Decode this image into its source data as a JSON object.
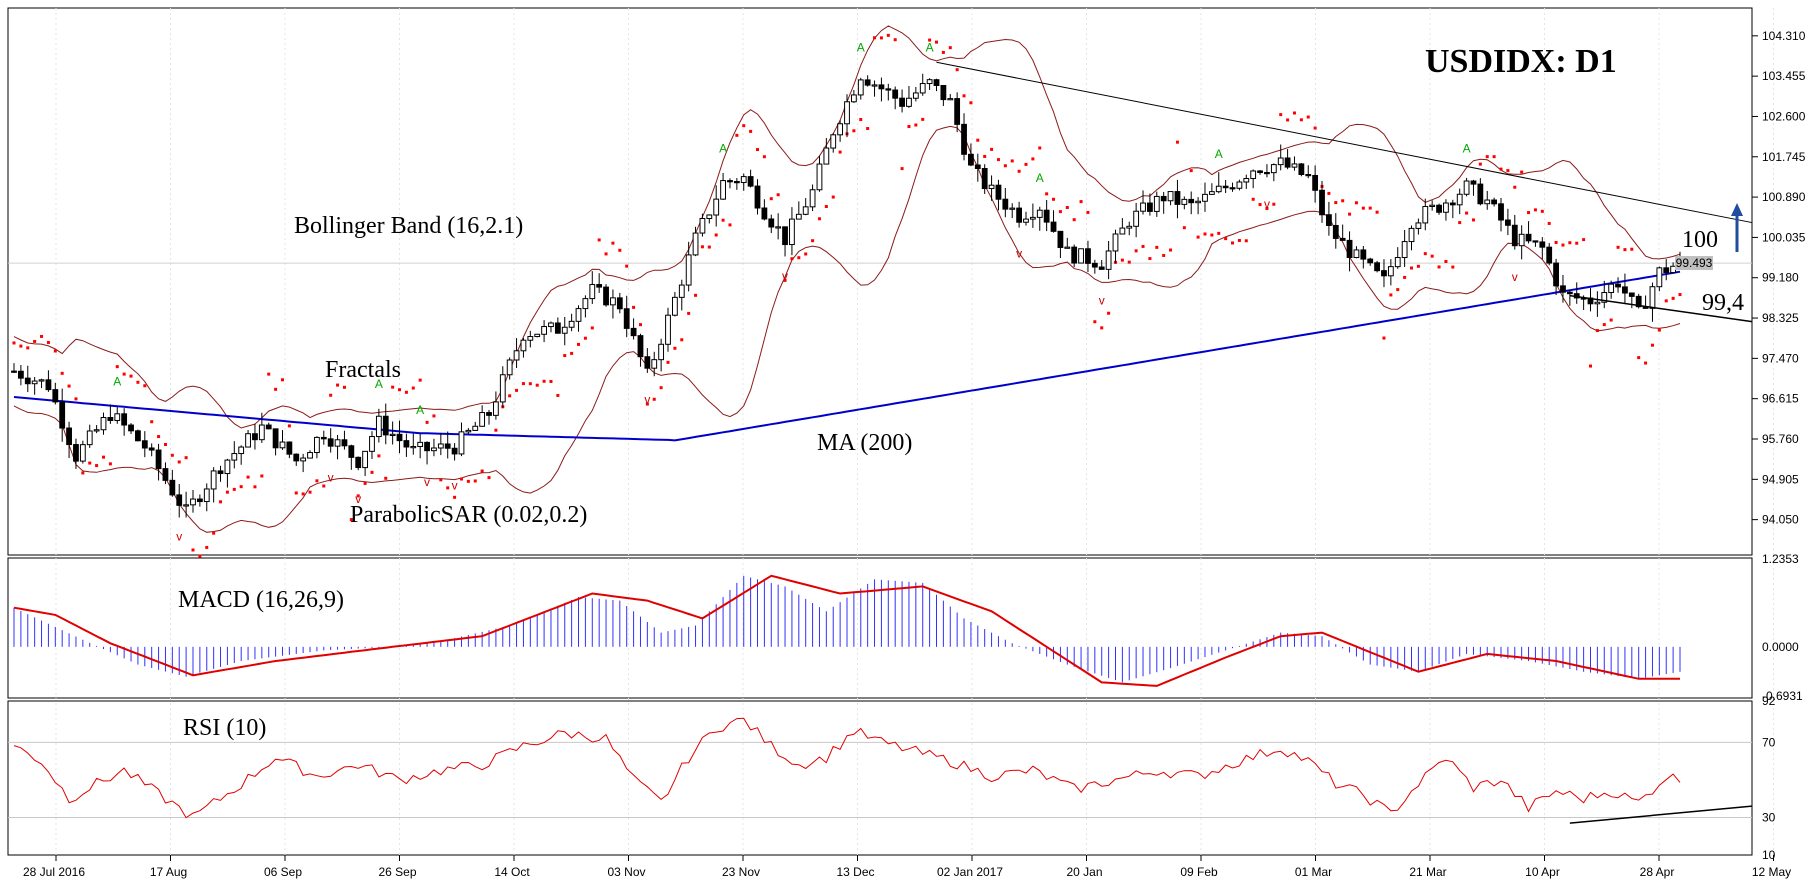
{
  "chart_data": {
    "type": "candlestick",
    "title": "USDIDX: D1",
    "price_axis": {
      "ticks": [
        "104.310",
        "103.455",
        "102.600",
        "101.745",
        "100.890",
        "100.035",
        "99.180",
        "98.325",
        "97.470",
        "96.615",
        "95.760",
        "94.905",
        "94.050"
      ],
      "ylim": [
        93.3,
        104.9
      ],
      "current_price": "99.493"
    },
    "x_axis_ticks": [
      "28 Jul 2016",
      "17 Aug",
      "06 Sep",
      "26 Sep",
      "14 Oct",
      "03 Nov",
      "23 Nov",
      "13 Dec",
      "02 Jan 2017",
      "20 Jan",
      "09 Feb",
      "01 Mar",
      "21 Mar",
      "10 Apr",
      "28 Apr",
      "12 May"
    ],
    "annotations": {
      "bollinger": "Bollinger Band (16,2.1)",
      "fractals": "Fractals",
      "ma": "MA (200)",
      "sar": "ParabolicSAR (0.02,0.2)",
      "level_up": "100",
      "level_down": "99,4"
    },
    "price_path": [
      {
        "d": 0,
        "v": 97.2
      },
      {
        "d": 5,
        "v": 96.9
      },
      {
        "d": 9,
        "v": 95.4
      },
      {
        "d": 14,
        "v": 96.3
      },
      {
        "d": 19,
        "v": 95.6
      },
      {
        "d": 25,
        "v": 94.2
      },
      {
        "d": 30,
        "v": 95.2
      },
      {
        "d": 36,
        "v": 96.0
      },
      {
        "d": 41,
        "v": 95.3
      },
      {
        "d": 45,
        "v": 95.9
      },
      {
        "d": 50,
        "v": 95.3
      },
      {
        "d": 53,
        "v": 96.1
      },
      {
        "d": 58,
        "v": 95.5
      },
      {
        "d": 64,
        "v": 95.6
      },
      {
        "d": 69,
        "v": 96.3
      },
      {
        "d": 74,
        "v": 98.0
      },
      {
        "d": 79,
        "v": 98.1
      },
      {
        "d": 84,
        "v": 98.9
      },
      {
        "d": 88,
        "v": 98.6
      },
      {
        "d": 92,
        "v": 97.1
      },
      {
        "d": 95,
        "v": 98.3
      },
      {
        "d": 99,
        "v": 100.0
      },
      {
        "d": 103,
        "v": 101.2
      },
      {
        "d": 106,
        "v": 101.3
      },
      {
        "d": 109,
        "v": 100.6
      },
      {
        "d": 112,
        "v": 100.0
      },
      {
        "d": 116,
        "v": 101.0
      },
      {
        "d": 119,
        "v": 102.3
      },
      {
        "d": 123,
        "v": 103.5
      },
      {
        "d": 126,
        "v": 103.2
      },
      {
        "d": 129,
        "v": 102.9
      },
      {
        "d": 133,
        "v": 103.3
      },
      {
        "d": 136,
        "v": 102.9
      },
      {
        "d": 139,
        "v": 101.5
      },
      {
        "d": 142,
        "v": 101.0
      },
      {
        "d": 146,
        "v": 100.5
      },
      {
        "d": 149,
        "v": 100.7
      },
      {
        "d": 153,
        "v": 99.7
      },
      {
        "d": 158,
        "v": 99.5
      },
      {
        "d": 162,
        "v": 100.4
      },
      {
        "d": 167,
        "v": 100.9
      },
      {
        "d": 171,
        "v": 100.7
      },
      {
        "d": 176,
        "v": 101.1
      },
      {
        "d": 180,
        "v": 101.5
      },
      {
        "d": 184,
        "v": 101.6
      },
      {
        "d": 188,
        "v": 101.3
      },
      {
        "d": 191,
        "v": 100.2
      },
      {
        "d": 195,
        "v": 99.6
      },
      {
        "d": 199,
        "v": 99.1
      },
      {
        "d": 203,
        "v": 100.4
      },
      {
        "d": 207,
        "v": 100.7
      },
      {
        "d": 211,
        "v": 101.1
      },
      {
        "d": 214,
        "v": 100.8
      },
      {
        "d": 218,
        "v": 100.0
      },
      {
        "d": 222,
        "v": 99.8
      },
      {
        "d": 225,
        "v": 98.8
      },
      {
        "d": 229,
        "v": 98.7
      },
      {
        "d": 233,
        "v": 99.1
      },
      {
        "d": 236,
        "v": 98.4
      },
      {
        "d": 239,
        "v": 99.3
      },
      {
        "d": 242,
        "v": 99.49
      }
    ],
    "macd": {
      "label": "MACD (16,26,9)",
      "ticks": [
        "1.2353",
        "0.0000",
        "-0.6931"
      ],
      "ylim": [
        -0.72,
        1.25
      ],
      "hist": [
        {
          "d": 0,
          "v": 0.55
        },
        {
          "d": 10,
          "v": 0.1
        },
        {
          "d": 18,
          "v": -0.25
        },
        {
          "d": 25,
          "v": -0.42
        },
        {
          "d": 33,
          "v": -0.2
        },
        {
          "d": 45,
          "v": -0.05
        },
        {
          "d": 55,
          "v": 0.0
        },
        {
          "d": 63,
          "v": 0.1
        },
        {
          "d": 72,
          "v": 0.3
        },
        {
          "d": 82,
          "v": 0.7
        },
        {
          "d": 88,
          "v": 0.65
        },
        {
          "d": 94,
          "v": 0.2
        },
        {
          "d": 99,
          "v": 0.3
        },
        {
          "d": 106,
          "v": 1.0
        },
        {
          "d": 112,
          "v": 0.85
        },
        {
          "d": 118,
          "v": 0.5
        },
        {
          "d": 125,
          "v": 0.95
        },
        {
          "d": 132,
          "v": 0.9
        },
        {
          "d": 138,
          "v": 0.4
        },
        {
          "d": 145,
          "v": 0.05
        },
        {
          "d": 153,
          "v": -0.25
        },
        {
          "d": 161,
          "v": -0.5
        },
        {
          "d": 168,
          "v": -0.3
        },
        {
          "d": 176,
          "v": -0.05
        },
        {
          "d": 184,
          "v": 0.2
        },
        {
          "d": 190,
          "v": 0.15
        },
        {
          "d": 197,
          "v": -0.25
        },
        {
          "d": 204,
          "v": -0.35
        },
        {
          "d": 211,
          "v": -0.1
        },
        {
          "d": 220,
          "v": -0.2
        },
        {
          "d": 228,
          "v": -0.35
        },
        {
          "d": 236,
          "v": -0.45
        },
        {
          "d": 242,
          "v": -0.35
        }
      ],
      "signal": [
        {
          "d": 0,
          "v": 0.55
        },
        {
          "d": 6,
          "v": 0.45
        },
        {
          "d": 14,
          "v": 0.05
        },
        {
          "d": 26,
          "v": -0.4
        },
        {
          "d": 38,
          "v": -0.2
        },
        {
          "d": 55,
          "v": 0.0
        },
        {
          "d": 68,
          "v": 0.15
        },
        {
          "d": 84,
          "v": 0.75
        },
        {
          "d": 92,
          "v": 0.65
        },
        {
          "d": 100,
          "v": 0.4
        },
        {
          "d": 110,
          "v": 1.0
        },
        {
          "d": 120,
          "v": 0.75
        },
        {
          "d": 132,
          "v": 0.85
        },
        {
          "d": 142,
          "v": 0.5
        },
        {
          "d": 158,
          "v": -0.5
        },
        {
          "d": 166,
          "v": -0.55
        },
        {
          "d": 176,
          "v": -0.15
        },
        {
          "d": 184,
          "v": 0.15
        },
        {
          "d": 190,
          "v": 0.2
        },
        {
          "d": 204,
          "v": -0.35
        },
        {
          "d": 214,
          "v": -0.1
        },
        {
          "d": 224,
          "v": -0.2
        },
        {
          "d": 236,
          "v": -0.45
        },
        {
          "d": 242,
          "v": -0.45
        }
      ]
    },
    "rsi": {
      "label": "RSI (10)",
      "ticks": [
        "92",
        "70",
        "30",
        "10"
      ],
      "ylim": [
        10,
        92
      ],
      "values": [
        {
          "d": 0,
          "v": 68
        },
        {
          "d": 4,
          "v": 60
        },
        {
          "d": 8,
          "v": 40
        },
        {
          "d": 12,
          "v": 48
        },
        {
          "d": 16,
          "v": 55
        },
        {
          "d": 20,
          "v": 45
        },
        {
          "d": 26,
          "v": 30
        },
        {
          "d": 32,
          "v": 45
        },
        {
          "d": 38,
          "v": 62
        },
        {
          "d": 44,
          "v": 52
        },
        {
          "d": 50,
          "v": 58
        },
        {
          "d": 56,
          "v": 50
        },
        {
          "d": 62,
          "v": 55
        },
        {
          "d": 68,
          "v": 58
        },
        {
          "d": 74,
          "v": 68
        },
        {
          "d": 80,
          "v": 75
        },
        {
          "d": 86,
          "v": 72
        },
        {
          "d": 90,
          "v": 50
        },
        {
          "d": 94,
          "v": 38
        },
        {
          "d": 98,
          "v": 62
        },
        {
          "d": 102,
          "v": 78
        },
        {
          "d": 106,
          "v": 82
        },
        {
          "d": 110,
          "v": 68
        },
        {
          "d": 114,
          "v": 58
        },
        {
          "d": 118,
          "v": 62
        },
        {
          "d": 122,
          "v": 76
        },
        {
          "d": 126,
          "v": 70
        },
        {
          "d": 130,
          "v": 66
        },
        {
          "d": 136,
          "v": 60
        },
        {
          "d": 142,
          "v": 52
        },
        {
          "d": 148,
          "v": 55
        },
        {
          "d": 154,
          "v": 45
        },
        {
          "d": 160,
          "v": 50
        },
        {
          "d": 166,
          "v": 55
        },
        {
          "d": 172,
          "v": 52
        },
        {
          "d": 178,
          "v": 60
        },
        {
          "d": 184,
          "v": 67
        },
        {
          "d": 188,
          "v": 60
        },
        {
          "d": 192,
          "v": 48
        },
        {
          "d": 196,
          "v": 42
        },
        {
          "d": 200,
          "v": 32
        },
        {
          "d": 204,
          "v": 48
        },
        {
          "d": 208,
          "v": 62
        },
        {
          "d": 212,
          "v": 46
        },
        {
          "d": 216,
          "v": 50
        },
        {
          "d": 220,
          "v": 35
        },
        {
          "d": 224,
          "v": 44
        },
        {
          "d": 228,
          "v": 40
        },
        {
          "d": 232,
          "v": 44
        },
        {
          "d": 236,
          "v": 38
        },
        {
          "d": 240,
          "v": 52
        },
        {
          "d": 242,
          "v": 50
        }
      ]
    },
    "colors": {
      "up": "#ffffff",
      "down": "#000000",
      "ma": "#0000cc",
      "bollinger": "#8b1a1a",
      "sar": "#ff0000",
      "fractal_up": "#00aa00",
      "fractal_down": "#cc0000",
      "macd_hist": "#3030ff",
      "macd_signal": "#e00000",
      "rsi": "#e00000",
      "arrow": "#1f4e9e"
    }
  }
}
